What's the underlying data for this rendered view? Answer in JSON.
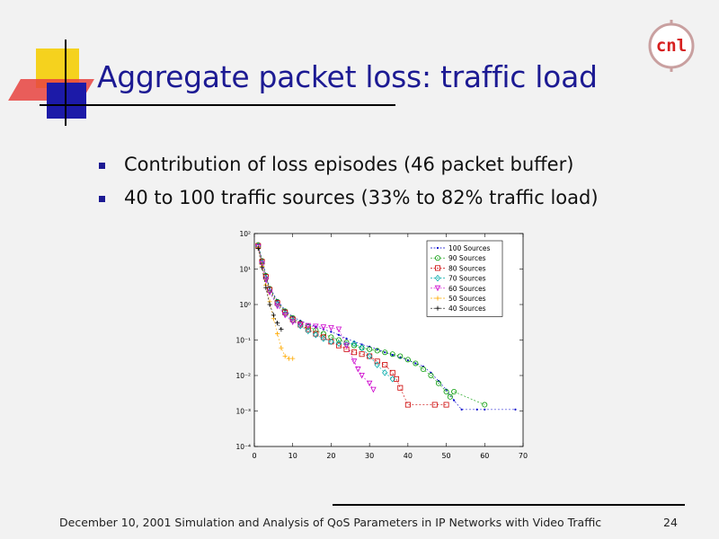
{
  "slide": {
    "title": "Aggregate packet loss: traffic load",
    "bullets": [
      "Contribution of loss episodes (46 packet buffer)",
      "40 to 100 traffic sources (33% to 82% traffic load)"
    ],
    "footer": "December 10, 2001 Simulation and Analysis of QoS Parameters in IP Networks with Video Traffic",
    "page_number": "24",
    "logo_text": "cnl"
  },
  "colors": {
    "title": "#1c1a93",
    "deco_yellow": "#f5d21e",
    "deco_red": "#e8433f",
    "deco_blue": "#1c1aa8"
  },
  "chart_data": {
    "type": "scatter",
    "xlim": [
      0,
      70
    ],
    "xticks": [
      0,
      10,
      20,
      30,
      40,
      50,
      60,
      70
    ],
    "ylog": true,
    "ylim_exp": [
      -4,
      2
    ],
    "ytick_labels": [
      "10⁻⁴",
      "10⁻³",
      "10⁻²",
      "10⁻¹",
      "10⁰",
      "10¹",
      "10²"
    ],
    "legend_position": "top-right",
    "series": [
      {
        "name": "100 Sources",
        "color": "#0000cc",
        "marker": "point",
        "x": [
          1,
          2,
          3,
          4,
          6,
          8,
          10,
          12,
          14,
          16,
          18,
          20,
          22,
          24,
          26,
          28,
          30,
          32,
          34,
          36,
          38,
          40,
          42,
          44,
          46,
          48,
          50,
          52,
          54,
          58,
          60,
          68
        ],
        "y": [
          50,
          18,
          7,
          3,
          1.3,
          0.7,
          0.45,
          0.35,
          0.28,
          0.24,
          0.2,
          0.17,
          0.14,
          0.11,
          0.09,
          0.075,
          0.065,
          0.055,
          0.045,
          0.038,
          0.032,
          0.027,
          0.022,
          0.018,
          0.012,
          0.007,
          0.004,
          0.002,
          0.0011,
          0.0011,
          0.0011,
          0.0011
        ]
      },
      {
        "name": "90 Sources",
        "color": "#009900",
        "marker": "circle",
        "x": [
          1,
          2,
          3,
          4,
          6,
          8,
          10,
          12,
          14,
          16,
          18,
          20,
          22,
          24,
          26,
          28,
          30,
          32,
          34,
          36,
          38,
          40,
          42,
          44,
          46,
          48,
          50,
          51,
          52,
          60
        ],
        "y": [
          48,
          17,
          6.5,
          2.8,
          1.2,
          0.65,
          0.42,
          0.3,
          0.24,
          0.19,
          0.15,
          0.12,
          0.1,
          0.085,
          0.07,
          0.06,
          0.055,
          0.05,
          0.045,
          0.04,
          0.035,
          0.028,
          0.022,
          0.015,
          0.01,
          0.006,
          0.0035,
          0.0025,
          0.0035,
          0.0015
        ]
      },
      {
        "name": "80 Sources",
        "color": "#cc0000",
        "marker": "square",
        "x": [
          1,
          2,
          3,
          4,
          6,
          8,
          10,
          12,
          14,
          16,
          18,
          20,
          22,
          24,
          26,
          28,
          30,
          32,
          34,
          36,
          37,
          38,
          40,
          47,
          50
        ],
        "y": [
          45,
          16,
          6,
          2.6,
          1.1,
          0.6,
          0.38,
          0.27,
          0.2,
          0.15,
          0.12,
          0.09,
          0.07,
          0.055,
          0.045,
          0.04,
          0.035,
          0.025,
          0.02,
          0.012,
          0.008,
          0.0045,
          0.0015,
          0.0015,
          0.0015
        ]
      },
      {
        "name": "70 Sources",
        "color": "#00aaaa",
        "marker": "diamond",
        "x": [
          1,
          2,
          3,
          4,
          6,
          8,
          10,
          12,
          14,
          16,
          18,
          20,
          22,
          24,
          26,
          28,
          30,
          32,
          34,
          36
        ],
        "y": [
          44,
          15,
          5.5,
          2.4,
          1,
          0.55,
          0.35,
          0.25,
          0.18,
          0.14,
          0.11,
          0.09,
          0.08,
          0.075,
          0.08,
          0.06,
          0.035,
          0.02,
          0.012,
          0.008
        ]
      },
      {
        "name": "60 Sources",
        "color": "#cc00cc",
        "marker": "triangle",
        "x": [
          1,
          2,
          3,
          4,
          6,
          8,
          10,
          12,
          14,
          16,
          18,
          20,
          22,
          24,
          26,
          27,
          28,
          30,
          31
        ],
        "y": [
          42,
          14,
          5,
          2.2,
          0.9,
          0.5,
          0.32,
          0.28,
          0.25,
          0.24,
          0.23,
          0.22,
          0.2,
          0.07,
          0.025,
          0.015,
          0.01,
          0.006,
          0.004
        ]
      },
      {
        "name": "50 Sources",
        "color": "#ffaa00",
        "marker": "plus",
        "x": [
          1,
          2,
          3,
          4,
          5,
          6,
          7,
          8,
          9,
          10
        ],
        "y": [
          40,
          12,
          3.5,
          1.2,
          0.4,
          0.15,
          0.06,
          0.035,
          0.03,
          0.03
        ]
      },
      {
        "name": "40 Sources",
        "color": "#000000",
        "marker": "plus",
        "x": [
          1,
          2,
          3,
          4,
          5,
          6,
          7
        ],
        "y": [
          38,
          11,
          3,
          1,
          0.5,
          0.3,
          0.2
        ]
      }
    ]
  }
}
